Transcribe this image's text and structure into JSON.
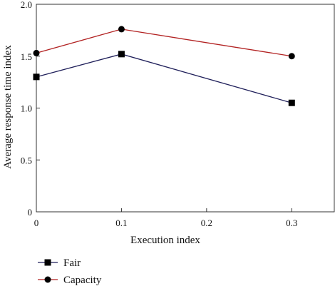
{
  "chart_data": {
    "type": "line",
    "xlabel": "Execution index",
    "ylabel": "Average response time index",
    "xlim": [
      0,
      0.35
    ],
    "ylim": [
      0,
      2.0
    ],
    "x_ticks": [
      "0",
      "0.1",
      "0.2",
      "0.3"
    ],
    "x_tick_values": [
      0,
      0.1,
      0.2,
      0.3
    ],
    "y_ticks": [
      "0",
      "0.5",
      "1.0",
      "1.5",
      "2.0"
    ],
    "y_tick_values": [
      0,
      0.5,
      1.0,
      1.5,
      2.0
    ],
    "legend_position": "bottom-left",
    "series": [
      {
        "name": "Fair",
        "color": "#1f1f5a",
        "marker": "square",
        "x": [
          0,
          0.1,
          0.3
        ],
        "y": [
          1.3,
          1.52,
          1.05
        ]
      },
      {
        "name": "Capacity",
        "color": "#b22222",
        "marker": "circle",
        "x": [
          0,
          0.1,
          0.3
        ],
        "y": [
          1.53,
          1.76,
          1.5
        ]
      }
    ]
  }
}
